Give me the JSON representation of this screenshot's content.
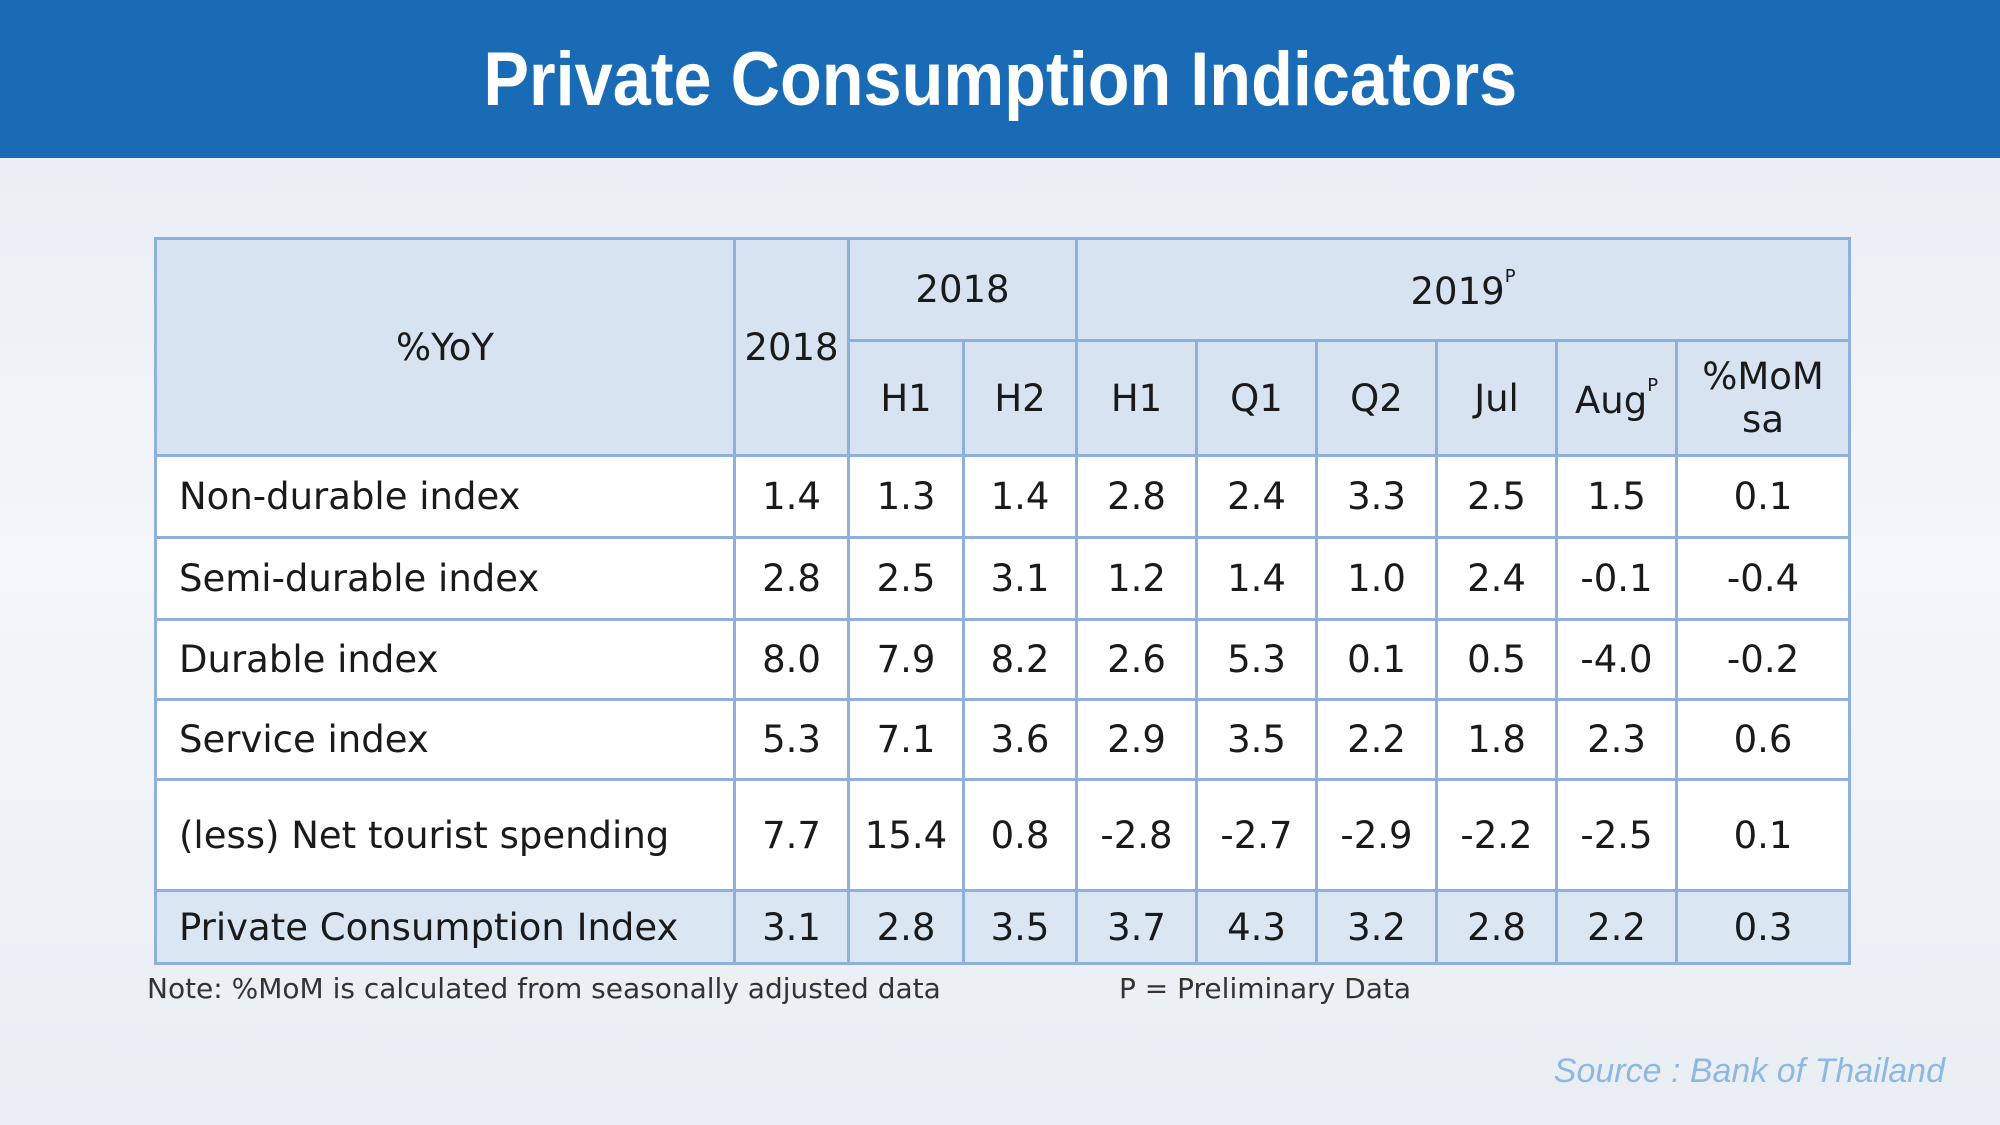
{
  "header": {
    "title": "Private Consumption Indicators"
  },
  "table": {
    "corner": "%YoY",
    "year_column": "2018",
    "groups": [
      {
        "label": "2018",
        "columns": [
          {
            "label": "H1"
          },
          {
            "label": "H2"
          }
        ]
      },
      {
        "label": "2019",
        "superscript": "P",
        "columns": [
          {
            "label": "H1"
          },
          {
            "label": "Q1"
          },
          {
            "label": "Q2"
          },
          {
            "label": "Jul"
          },
          {
            "label": "Aug",
            "superscript": "P"
          },
          {
            "label": "%MoM sa"
          }
        ]
      }
    ],
    "rows": [
      {
        "label": "Non-durable index",
        "values": [
          "1.4",
          "1.3",
          "1.4",
          "2.8",
          "2.4",
          "3.3",
          "2.5",
          "1.5",
          "0.1"
        ]
      },
      {
        "label": "Semi-durable index",
        "values": [
          "2.8",
          "2.5",
          "3.1",
          "1.2",
          "1.4",
          "1.0",
          "2.4",
          "-0.1",
          "-0.4"
        ]
      },
      {
        "label": "Durable index",
        "values": [
          "8.0",
          "7.9",
          "8.2",
          "2.6",
          "5.3",
          "0.1",
          "0.5",
          "-4.0",
          "-0.2"
        ]
      },
      {
        "label": "Service index",
        "values": [
          "5.3",
          "7.1",
          "3.6",
          "2.9",
          "3.5",
          "2.2",
          "1.8",
          "2.3",
          "0.6"
        ]
      },
      {
        "label": "(less) Net tourist spending",
        "values": [
          "7.7",
          "15.4",
          "0.8",
          "-2.8",
          "-2.7",
          "-2.9",
          "-2.2",
          "-2.5",
          "0.1"
        ]
      },
      {
        "label": "Private Consumption Index",
        "values": [
          "3.1",
          "2.8",
          "3.5",
          "3.7",
          "4.3",
          "3.2",
          "2.8",
          "2.2",
          "0.3"
        ]
      }
    ]
  },
  "footer": {
    "note": "Note: %MoM is calculated from seasonally adjusted data",
    "preliminary": "P = Preliminary Data",
    "source": "Source : Bank of Thailand"
  }
}
